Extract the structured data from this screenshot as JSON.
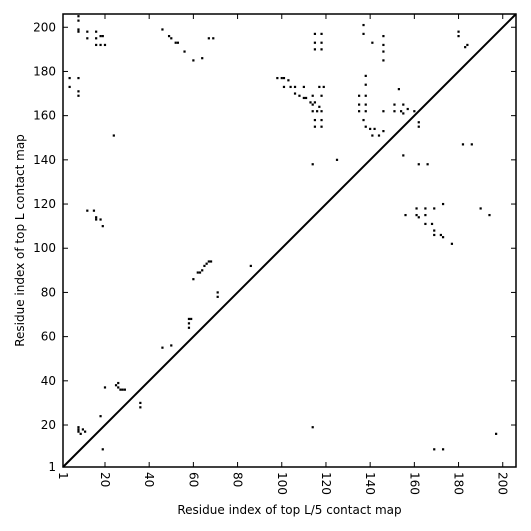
{
  "chart_data": {
    "type": "scatter",
    "xlabel": "Residue index of top L/5 contact map",
    "ylabel": "Residue index of top L contact map",
    "xlim": [
      1,
      206
    ],
    "ylim": [
      1,
      206
    ],
    "xticks": [
      1,
      20,
      40,
      60,
      80,
      100,
      120,
      140,
      160,
      180,
      200
    ],
    "yticks": [
      1,
      20,
      40,
      60,
      80,
      100,
      120,
      140,
      160,
      180,
      200
    ],
    "color": "#000000",
    "x": [
      8,
      8,
      8,
      8,
      12,
      16,
      18,
      16,
      19,
      16,
      18,
      20,
      12,
      4,
      8,
      4,
      8,
      8,
      46,
      49,
      50,
      52,
      53,
      56,
      60,
      64,
      67,
      69,
      98,
      100,
      101,
      103,
      101,
      104,
      106,
      106,
      108,
      110,
      110,
      111,
      114,
      113,
      114,
      115,
      117,
      118,
      117,
      119,
      114,
      116,
      118,
      115,
      115,
      118,
      118,
      115,
      118,
      115,
      118,
      115,
      118,
      137,
      137,
      141,
      146,
      146,
      146,
      146,
      135,
      135,
      135,
      138,
      138,
      138,
      138,
      138,
      137,
      138,
      140,
      142,
      141,
      144,
      146,
      146,
      151,
      151,
      153,
      155,
      154,
      155,
      157,
      160,
      162,
      162,
      180,
      180,
      184,
      183,
      24,
      8,
      8,
      9,
      10,
      11,
      8,
      19,
      18,
      20,
      25,
      26,
      27,
      28,
      26,
      29,
      36,
      36,
      46,
      50,
      58,
      59,
      58,
      58,
      60,
      62,
      63,
      64,
      65,
      66,
      67,
      68,
      71,
      71,
      86,
      114,
      114,
      125,
      12,
      15,
      16,
      16,
      18,
      19,
      155,
      156,
      161,
      161,
      162,
      162,
      166,
      165,
      165,
      165,
      169,
      168,
      169,
      169,
      172,
      173,
      173,
      177,
      182,
      186,
      190,
      194,
      197,
      169,
      173
    ],
    "y": [
      205,
      203,
      199,
      198,
      198,
      198,
      196,
      195,
      196,
      192,
      192,
      192,
      195,
      177,
      177,
      173,
      171,
      169,
      199,
      196,
      195,
      193,
      193,
      189,
      185,
      186,
      195,
      195,
      177,
      177,
      177,
      176,
      173,
      173,
      173,
      170,
      169,
      168,
      173,
      168,
      169,
      166,
      165,
      166,
      164,
      169,
      173,
      173,
      162,
      162,
      162,
      158,
      155,
      158,
      155,
      197,
      197,
      193,
      193,
      190,
      190,
      201,
      197,
      193,
      196,
      192,
      189,
      185,
      169,
      165,
      162,
      178,
      174,
      169,
      165,
      162,
      158,
      155,
      154,
      154,
      151,
      151,
      153,
      162,
      165,
      162,
      172,
      165,
      162,
      161,
      163,
      162,
      155,
      157,
      198,
      196,
      192,
      191,
      151,
      19,
      17,
      16,
      18,
      17,
      18,
      9,
      24,
      37,
      38,
      37,
      36,
      36,
      39,
      36,
      30,
      28,
      55,
      56,
      68,
      68,
      66,
      64,
      86,
      89,
      89,
      90,
      92,
      93,
      94,
      94,
      80,
      78,
      92,
      19,
      138,
      140,
      117,
      117,
      114,
      113,
      113,
      110,
      142,
      115,
      118,
      115,
      114,
      138,
      138,
      118,
      115,
      111,
      118,
      111,
      108,
      106,
      106,
      105,
      120,
      102,
      147,
      147,
      118,
      115,
      16,
      9,
      9
    ]
  }
}
